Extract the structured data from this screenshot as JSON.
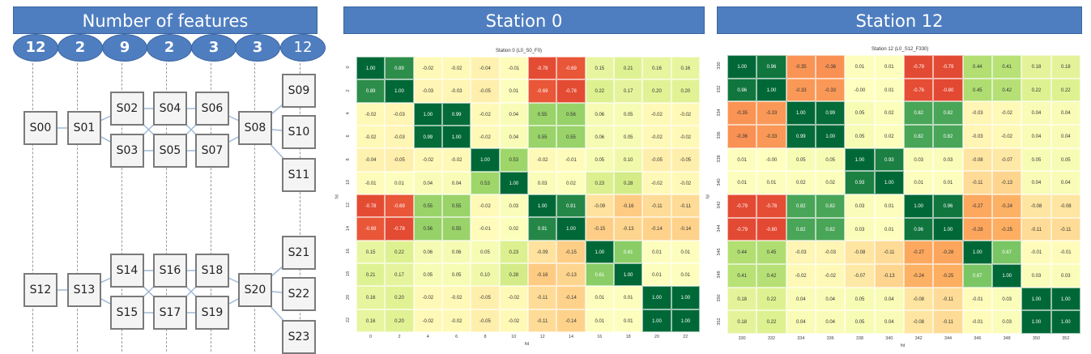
{
  "diagram": {
    "header": "Number of features",
    "feature_counts": [
      "12",
      "2",
      "9",
      "2",
      "3",
      "3",
      "12"
    ],
    "groups": [
      [
        "S00",
        "S01",
        "S02",
        "S03",
        "S04",
        "S05",
        "S06",
        "S07",
        "S08",
        "S09",
        "S10",
        "S11"
      ],
      [
        "S12",
        "S13",
        "S14",
        "S15",
        "S16",
        "S17",
        "S18",
        "S19",
        "S20",
        "S21",
        "S22",
        "S23"
      ]
    ]
  },
  "heatmaps": [
    {
      "header": "Station 0",
      "title": "Station 0  (L0_S0_F0)",
      "axis_label": "fid",
      "labels": [
        "0",
        "2",
        "4",
        "6",
        "8",
        "10",
        "12",
        "14",
        "16",
        "18",
        "20",
        "22"
      ],
      "matrix": [
        [
          1.0,
          0.89,
          -0.02,
          -0.02,
          -0.04,
          -0.01,
          -0.78,
          -0.69,
          0.15,
          0.21,
          0.16,
          0.16
        ],
        [
          0.89,
          1.0,
          -0.03,
          -0.03,
          -0.05,
          0.01,
          -0.69,
          -0.78,
          0.22,
          0.17,
          0.2,
          0.2
        ],
        [
          -0.02,
          -0.03,
          1.0,
          0.99,
          -0.02,
          0.04,
          0.55,
          0.56,
          0.06,
          0.05,
          -0.02,
          -0.02
        ],
        [
          -0.02,
          -0.03,
          0.99,
          1.0,
          -0.02,
          0.04,
          0.55,
          0.55,
          0.06,
          0.05,
          -0.02,
          -0.02
        ],
        [
          -0.04,
          -0.05,
          -0.02,
          -0.02,
          1.0,
          0.53,
          -0.02,
          -0.01,
          0.05,
          0.1,
          -0.05,
          -0.05
        ],
        [
          -0.01,
          0.01,
          0.04,
          0.04,
          0.53,
          1.0,
          0.03,
          0.02,
          0.23,
          0.28,
          -0.02,
          -0.02
        ],
        [
          -0.78,
          -0.69,
          0.55,
          0.55,
          -0.02,
          0.03,
          1.0,
          0.91,
          -0.09,
          -0.16,
          -0.11,
          -0.11
        ],
        [
          -0.69,
          -0.78,
          0.56,
          0.55,
          -0.01,
          0.02,
          0.91,
          1.0,
          -0.15,
          -0.13,
          -0.14,
          -0.14
        ],
        [
          0.15,
          0.22,
          0.06,
          0.06,
          0.05,
          0.23,
          -0.09,
          -0.15,
          1.0,
          0.61,
          0.01,
          0.01
        ],
        [
          0.21,
          0.17,
          0.05,
          0.05,
          0.1,
          0.28,
          -0.16,
          -0.13,
          0.61,
          1.0,
          0.01,
          0.01
        ],
        [
          0.16,
          0.2,
          -0.02,
          -0.02,
          -0.05,
          -0.02,
          -0.11,
          -0.14,
          0.01,
          0.01,
          1.0,
          1.0
        ],
        [
          0.16,
          0.2,
          -0.02,
          -0.02,
          -0.05,
          -0.02,
          -0.11,
          -0.14,
          0.01,
          0.01,
          1.0,
          1.0
        ]
      ]
    },
    {
      "header": "Station 12",
      "title": "Station 12  (L0_S12_F330)",
      "axis_label": "fid",
      "labels": [
        "330",
        "332",
        "334",
        "336",
        "338",
        "340",
        "342",
        "344",
        "346",
        "348",
        "350",
        "352"
      ],
      "matrix": [
        [
          1.0,
          0.96,
          -0.35,
          -0.36,
          0.01,
          0.01,
          -0.79,
          -0.79,
          0.44,
          0.41,
          0.18,
          0.18
        ],
        [
          0.96,
          1.0,
          -0.33,
          -0.33,
          -0.0,
          0.01,
          -0.76,
          -0.8,
          0.45,
          0.42,
          0.22,
          0.22
        ],
        [
          -0.35,
          -0.33,
          1.0,
          0.99,
          0.05,
          0.02,
          0.82,
          0.82,
          -0.03,
          -0.02,
          0.04,
          0.04
        ],
        [
          -0.36,
          -0.33,
          0.99,
          1.0,
          0.05,
          0.02,
          0.82,
          0.82,
          -0.03,
          -0.02,
          0.04,
          0.04
        ],
        [
          0.01,
          -0.0,
          0.05,
          0.05,
          1.0,
          0.93,
          0.03,
          0.03,
          -0.08,
          -0.07,
          0.05,
          0.05
        ],
        [
          0.01,
          0.01,
          0.02,
          0.02,
          0.93,
          1.0,
          0.01,
          0.01,
          -0.11,
          -0.13,
          0.04,
          0.04
        ],
        [
          -0.79,
          -0.76,
          0.82,
          0.82,
          0.03,
          0.01,
          1.0,
          0.96,
          -0.27,
          -0.24,
          -0.08,
          -0.08
        ],
        [
          -0.79,
          -0.8,
          0.82,
          0.82,
          0.03,
          0.01,
          0.96,
          1.0,
          -0.28,
          -0.25,
          -0.11,
          -0.11
        ],
        [
          0.44,
          0.45,
          -0.03,
          -0.03,
          -0.08,
          -0.11,
          -0.27,
          -0.28,
          1.0,
          0.67,
          -0.01,
          -0.01
        ],
        [
          0.41,
          0.42,
          -0.02,
          -0.02,
          -0.07,
          -0.13,
          -0.24,
          -0.25,
          0.67,
          1.0,
          0.03,
          0.03
        ],
        [
          0.18,
          0.22,
          0.04,
          0.04,
          0.05,
          0.04,
          -0.08,
          -0.11,
          -0.01,
          0.03,
          1.0,
          1.0
        ],
        [
          0.18,
          0.22,
          0.04,
          0.04,
          0.05,
          0.04,
          -0.08,
          -0.11,
          -0.01,
          0.03,
          1.0,
          1.0
        ]
      ]
    }
  ]
}
